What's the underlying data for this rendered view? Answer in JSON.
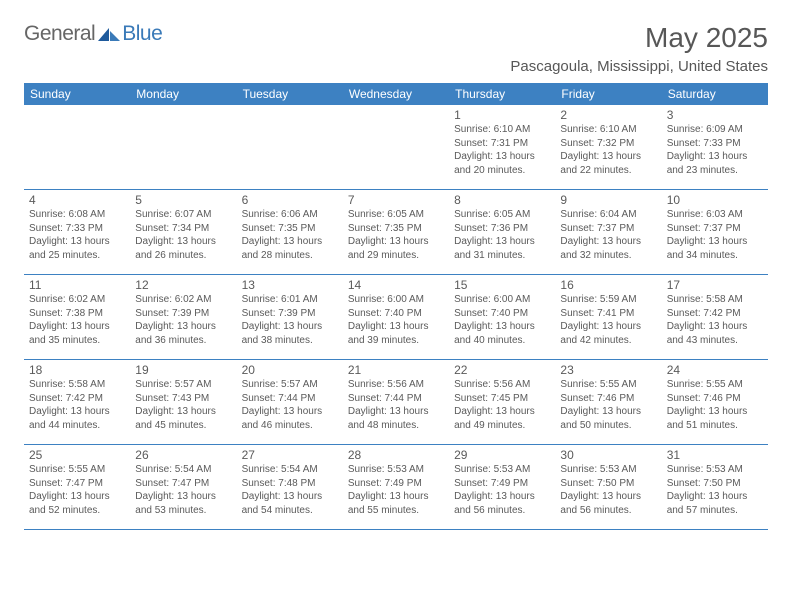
{
  "logo": {
    "general": "General",
    "blue": "Blue"
  },
  "title": "May 2025",
  "location": "Pascagoula, Mississippi, United States",
  "colors": {
    "header_bg": "#3d81c2",
    "header_text": "#ffffff",
    "body_text": "#5a5a5a",
    "title_text": "#575757",
    "logo_gray": "#666666",
    "logo_blue": "#3a7ab8",
    "border": "#3d81c2"
  },
  "day_headers": [
    "Sunday",
    "Monday",
    "Tuesday",
    "Wednesday",
    "Thursday",
    "Friday",
    "Saturday"
  ],
  "weeks": [
    [
      null,
      null,
      null,
      null,
      {
        "n": "1",
        "sr": "6:10 AM",
        "ss": "7:31 PM",
        "dl": "13 hours and 20 minutes."
      },
      {
        "n": "2",
        "sr": "6:10 AM",
        "ss": "7:32 PM",
        "dl": "13 hours and 22 minutes."
      },
      {
        "n": "3",
        "sr": "6:09 AM",
        "ss": "7:33 PM",
        "dl": "13 hours and 23 minutes."
      }
    ],
    [
      {
        "n": "4",
        "sr": "6:08 AM",
        "ss": "7:33 PM",
        "dl": "13 hours and 25 minutes."
      },
      {
        "n": "5",
        "sr": "6:07 AM",
        "ss": "7:34 PM",
        "dl": "13 hours and 26 minutes."
      },
      {
        "n": "6",
        "sr": "6:06 AM",
        "ss": "7:35 PM",
        "dl": "13 hours and 28 minutes."
      },
      {
        "n": "7",
        "sr": "6:05 AM",
        "ss": "7:35 PM",
        "dl": "13 hours and 29 minutes."
      },
      {
        "n": "8",
        "sr": "6:05 AM",
        "ss": "7:36 PM",
        "dl": "13 hours and 31 minutes."
      },
      {
        "n": "9",
        "sr": "6:04 AM",
        "ss": "7:37 PM",
        "dl": "13 hours and 32 minutes."
      },
      {
        "n": "10",
        "sr": "6:03 AM",
        "ss": "7:37 PM",
        "dl": "13 hours and 34 minutes."
      }
    ],
    [
      {
        "n": "11",
        "sr": "6:02 AM",
        "ss": "7:38 PM",
        "dl": "13 hours and 35 minutes."
      },
      {
        "n": "12",
        "sr": "6:02 AM",
        "ss": "7:39 PM",
        "dl": "13 hours and 36 minutes."
      },
      {
        "n": "13",
        "sr": "6:01 AM",
        "ss": "7:39 PM",
        "dl": "13 hours and 38 minutes."
      },
      {
        "n": "14",
        "sr": "6:00 AM",
        "ss": "7:40 PM",
        "dl": "13 hours and 39 minutes."
      },
      {
        "n": "15",
        "sr": "6:00 AM",
        "ss": "7:40 PM",
        "dl": "13 hours and 40 minutes."
      },
      {
        "n": "16",
        "sr": "5:59 AM",
        "ss": "7:41 PM",
        "dl": "13 hours and 42 minutes."
      },
      {
        "n": "17",
        "sr": "5:58 AM",
        "ss": "7:42 PM",
        "dl": "13 hours and 43 minutes."
      }
    ],
    [
      {
        "n": "18",
        "sr": "5:58 AM",
        "ss": "7:42 PM",
        "dl": "13 hours and 44 minutes."
      },
      {
        "n": "19",
        "sr": "5:57 AM",
        "ss": "7:43 PM",
        "dl": "13 hours and 45 minutes."
      },
      {
        "n": "20",
        "sr": "5:57 AM",
        "ss": "7:44 PM",
        "dl": "13 hours and 46 minutes."
      },
      {
        "n": "21",
        "sr": "5:56 AM",
        "ss": "7:44 PM",
        "dl": "13 hours and 48 minutes."
      },
      {
        "n": "22",
        "sr": "5:56 AM",
        "ss": "7:45 PM",
        "dl": "13 hours and 49 minutes."
      },
      {
        "n": "23",
        "sr": "5:55 AM",
        "ss": "7:46 PM",
        "dl": "13 hours and 50 minutes."
      },
      {
        "n": "24",
        "sr": "5:55 AM",
        "ss": "7:46 PM",
        "dl": "13 hours and 51 minutes."
      }
    ],
    [
      {
        "n": "25",
        "sr": "5:55 AM",
        "ss": "7:47 PM",
        "dl": "13 hours and 52 minutes."
      },
      {
        "n": "26",
        "sr": "5:54 AM",
        "ss": "7:47 PM",
        "dl": "13 hours and 53 minutes."
      },
      {
        "n": "27",
        "sr": "5:54 AM",
        "ss": "7:48 PM",
        "dl": "13 hours and 54 minutes."
      },
      {
        "n": "28",
        "sr": "5:53 AM",
        "ss": "7:49 PM",
        "dl": "13 hours and 55 minutes."
      },
      {
        "n": "29",
        "sr": "5:53 AM",
        "ss": "7:49 PM",
        "dl": "13 hours and 56 minutes."
      },
      {
        "n": "30",
        "sr": "5:53 AM",
        "ss": "7:50 PM",
        "dl": "13 hours and 56 minutes."
      },
      {
        "n": "31",
        "sr": "5:53 AM",
        "ss": "7:50 PM",
        "dl": "13 hours and 57 minutes."
      }
    ]
  ],
  "labels": {
    "sunrise": "Sunrise: ",
    "sunset": "Sunset: ",
    "daylight": "Daylight: "
  }
}
